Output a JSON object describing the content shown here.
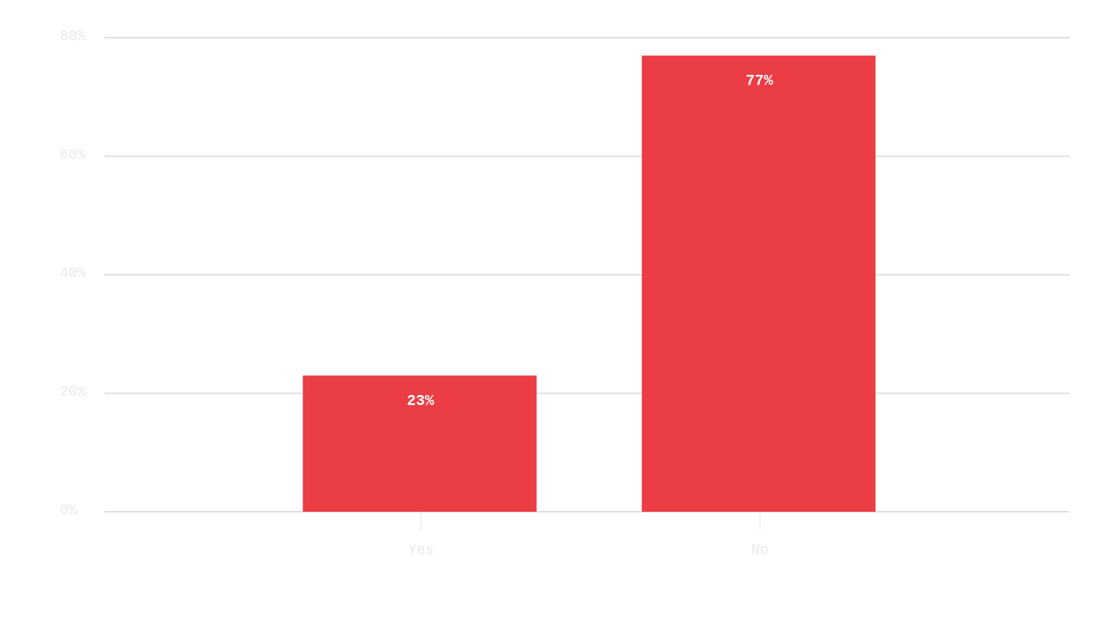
{
  "chart_data": {
    "type": "bar",
    "categories": [
      "Yes",
      "No"
    ],
    "values": [
      23,
      77
    ],
    "value_labels": [
      "23%",
      "77%"
    ],
    "color": "#eb3e44",
    "ylim": [
      0,
      80
    ],
    "yticks": [
      {
        "value": 0,
        "label": "0%"
      },
      {
        "value": 20,
        "label": "20%"
      },
      {
        "value": 40,
        "label": "40%"
      },
      {
        "value": 60,
        "label": "60%"
      },
      {
        "value": 80,
        "label": "80%"
      }
    ],
    "grid": true
  }
}
